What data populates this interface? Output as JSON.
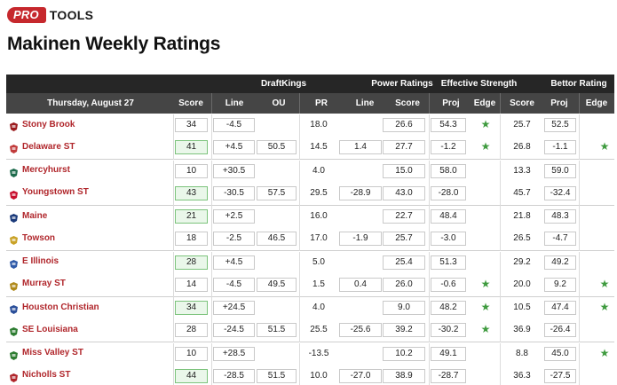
{
  "brand": {
    "logo_pro": "PRO",
    "logo_tools": "TOOLS"
  },
  "page": {
    "title": "Makinen Weekly Ratings"
  },
  "header": {
    "groups": {
      "draftkings": "DraftKings",
      "power_ratings": "Power Ratings",
      "effective_strength": "Effective Strength",
      "bettor_rating": "Bettor Rating"
    },
    "date": "Thursday, August 27",
    "columns": {
      "score": "Score",
      "line": "Line",
      "ou": "OU",
      "pr": "PR",
      "pr_line": "Line",
      "pr_score": "Score",
      "es_proj": "Proj",
      "es_edge": "Edge",
      "br_score": "Score",
      "br_proj": "Proj",
      "br_edge": "Edge"
    }
  },
  "colors": {
    "team_name": "#b0262b",
    "accent_red": "#c6282d",
    "star": "#3f9b3f",
    "win_bg": "#eaf7ea"
  },
  "games": [
    {
      "teams": [
        {
          "icon": "stony-brook-logo-icon",
          "icon_color": "#9b1c1f",
          "name": "Stony Brook",
          "score": "34",
          "win": false,
          "line": "-4.5",
          "ou": "",
          "pr": "18.0",
          "pr_line": "",
          "pr_score": "26.6",
          "es_proj": "54.3",
          "es_edge": true,
          "br_score": "25.7",
          "br_proj": "52.5",
          "br_edge": false
        },
        {
          "icon": "delaware-st-logo-icon",
          "icon_color": "#c13b3b",
          "name": "Delaware ST",
          "score": "41",
          "win": true,
          "line": "+4.5",
          "ou": "50.5",
          "pr": "14.5",
          "pr_line": "1.4",
          "pr_score": "27.7",
          "es_proj": "-1.2",
          "es_edge": true,
          "br_score": "26.8",
          "br_proj": "-1.1",
          "br_edge": true
        }
      ]
    },
    {
      "teams": [
        {
          "icon": "mercyhurst-logo-icon",
          "icon_color": "#1d6b4c",
          "name": "Mercyhurst",
          "score": "10",
          "win": false,
          "line": "+30.5",
          "ou": "",
          "pr": "4.0",
          "pr_line": "",
          "pr_score": "15.0",
          "es_proj": "58.0",
          "es_edge": false,
          "br_score": "13.3",
          "br_proj": "59.0",
          "br_edge": false
        },
        {
          "icon": "youngstown-st-logo-icon",
          "icon_color": "#c8102e",
          "name": "Youngstown ST",
          "score": "43",
          "win": true,
          "line": "-30.5",
          "ou": "57.5",
          "pr": "29.5",
          "pr_line": "-28.9",
          "pr_score": "43.0",
          "es_proj": "-28.0",
          "es_edge": false,
          "br_score": "45.7",
          "br_proj": "-32.4",
          "br_edge": false
        }
      ]
    },
    {
      "teams": [
        {
          "icon": "maine-logo-icon",
          "icon_color": "#1a3a7a",
          "name": "Maine",
          "score": "21",
          "win": true,
          "line": "+2.5",
          "ou": "",
          "pr": "16.0",
          "pr_line": "",
          "pr_score": "22.7",
          "es_proj": "48.4",
          "es_edge": false,
          "br_score": "21.8",
          "br_proj": "48.3",
          "br_edge": false
        },
        {
          "icon": "towson-logo-icon",
          "icon_color": "#c9a227",
          "name": "Towson",
          "score": "18",
          "win": false,
          "line": "-2.5",
          "ou": "46.5",
          "pr": "17.0",
          "pr_line": "-1.9",
          "pr_score": "25.7",
          "es_proj": "-3.0",
          "es_edge": false,
          "br_score": "26.5",
          "br_proj": "-4.7",
          "br_edge": false
        }
      ]
    },
    {
      "teams": [
        {
          "icon": "e-illinois-logo-icon",
          "icon_color": "#2f5aa8",
          "name": "E Illinois",
          "score": "28",
          "win": true,
          "line": "+4.5",
          "ou": "",
          "pr": "5.0",
          "pr_line": "",
          "pr_score": "25.4",
          "es_proj": "51.3",
          "es_edge": false,
          "br_score": "29.2",
          "br_proj": "49.2",
          "br_edge": false
        },
        {
          "icon": "murray-st-logo-icon",
          "icon_color": "#b08a1c",
          "name": "Murray ST",
          "score": "14",
          "win": false,
          "line": "-4.5",
          "ou": "49.5",
          "pr": "1.5",
          "pr_line": "0.4",
          "pr_score": "26.0",
          "es_proj": "-0.6",
          "es_edge": true,
          "br_score": "20.0",
          "br_proj": "9.2",
          "br_edge": true
        }
      ]
    },
    {
      "teams": [
        {
          "icon": "houston-christian-logo-icon",
          "icon_color": "#2b4f9a",
          "name": "Houston Christian",
          "score": "34",
          "win": true,
          "line": "+24.5",
          "ou": "",
          "pr": "4.0",
          "pr_line": "",
          "pr_score": "9.0",
          "es_proj": "48.2",
          "es_edge": true,
          "br_score": "10.5",
          "br_proj": "47.4",
          "br_edge": true
        },
        {
          "icon": "se-louisiana-logo-icon",
          "icon_color": "#2e7d32",
          "name": "SE Louisiana",
          "score": "28",
          "win": false,
          "line": "-24.5",
          "ou": "51.5",
          "pr": "25.5",
          "pr_line": "-25.6",
          "pr_score": "39.2",
          "es_proj": "-30.2",
          "es_edge": true,
          "br_score": "36.9",
          "br_proj": "-26.4",
          "br_edge": false
        }
      ]
    },
    {
      "teams": [
        {
          "icon": "miss-valley-st-logo-icon",
          "icon_color": "#2e7d32",
          "name": "Miss Valley ST",
          "score": "10",
          "win": false,
          "line": "+28.5",
          "ou": "",
          "pr": "-13.5",
          "pr_line": "",
          "pr_score": "10.2",
          "es_proj": "49.1",
          "es_edge": false,
          "br_score": "8.8",
          "br_proj": "45.0",
          "br_edge": true
        },
        {
          "icon": "nicholls-st-logo-icon",
          "icon_color": "#b0262b",
          "name": "Nicholls ST",
          "score": "44",
          "win": true,
          "line": "-28.5",
          "ou": "51.5",
          "pr": "10.0",
          "pr_line": "-27.0",
          "pr_score": "38.9",
          "es_proj": "-28.7",
          "es_edge": false,
          "br_score": "36.3",
          "br_proj": "-27.5",
          "br_edge": false
        }
      ]
    }
  ]
}
